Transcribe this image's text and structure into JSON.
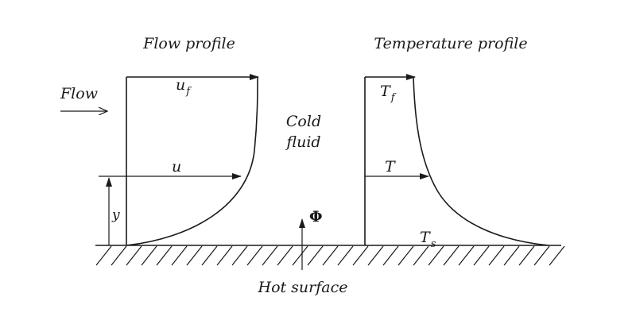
{
  "diagram": {
    "flow_profile_title": "Flow profile",
    "temperature_profile_title": "Temperature profile",
    "flow_label": "Flow",
    "u_f_main": "u",
    "u_f_sub": "f",
    "u_label": "u",
    "y_label": "y",
    "cold_fluid_line1": "Cold",
    "cold_fluid_line2": "fluid",
    "phi_label": "Φ",
    "T_f_main": "T",
    "T_f_sub": "f",
    "T_label": "T",
    "T_s_main": "T",
    "T_s_sub": "s",
    "hot_surface_label": "Hot surface"
  }
}
